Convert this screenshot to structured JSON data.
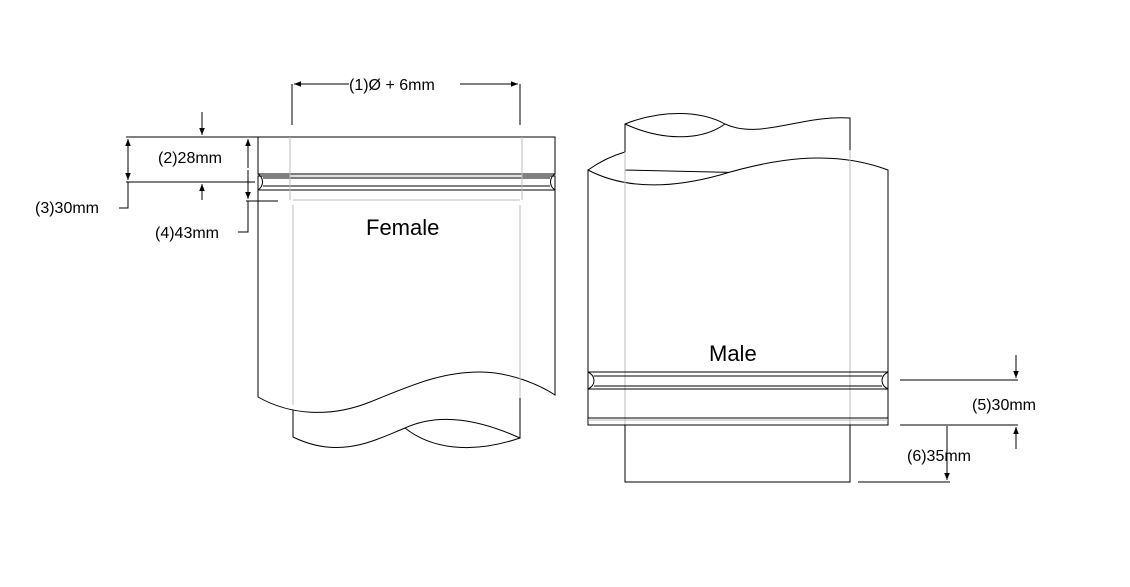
{
  "dimensions": {
    "d1": "(1)Ø + 6mm",
    "d2": "(2)28mm",
    "d3": "(3)30mm",
    "d4": "(4)43mm",
    "d5": "(5)30mm",
    "d6": "(6)35mm"
  },
  "parts": {
    "female": "Female",
    "male": "Male"
  }
}
